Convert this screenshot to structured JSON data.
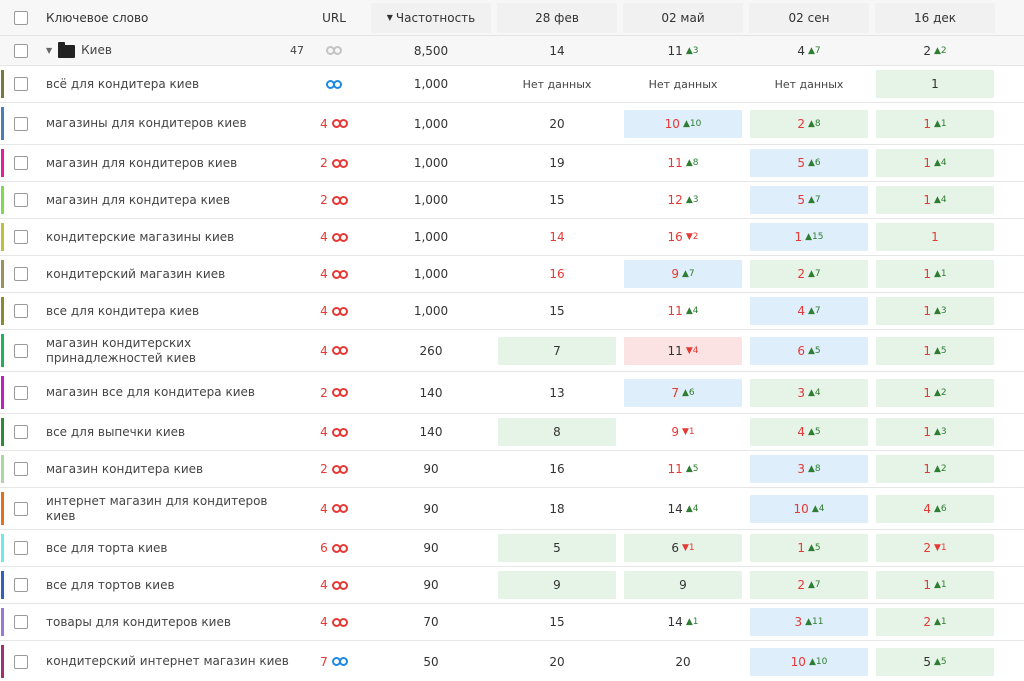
{
  "header": {
    "keyword": "Ключевое слово",
    "url": "URL",
    "frequency": "Частотность",
    "sort_icon": "sort-down-icon",
    "dates": [
      "28 фев",
      "02 май",
      "02 сен",
      "16 дек"
    ]
  },
  "folder": {
    "name": "Киев",
    "count": "47",
    "frequency": "8,500",
    "positions": [
      {
        "v": "14",
        "d": ""
      },
      {
        "v": "11",
        "d": "▲3"
      },
      {
        "v": "4",
        "d": "▲7"
      },
      {
        "v": "2",
        "d": "▲2"
      }
    ]
  },
  "colors": {
    "up": "#2e7d32",
    "down": "#e53935",
    "green_bg": "#e6f4e8",
    "blue_bg": "#dfeefb",
    "pink_bg": "#fbe3e3",
    "link_red": "#e53935",
    "link_blue": "#1e88e5"
  },
  "rows": [
    {
      "kw": "всё для кондитера киев",
      "bar": "#7a7a3a",
      "url": "",
      "url_color": "blue",
      "freq": "1,000",
      "p": [
        {
          "v": "Нет данных",
          "d": "",
          "bg": "",
          "c": "",
          "nd": true
        },
        {
          "v": "Нет данных",
          "d": "",
          "bg": "",
          "c": "",
          "nd": true
        },
        {
          "v": "Нет данных",
          "d": "",
          "bg": "",
          "c": "",
          "nd": true
        },
        {
          "v": "1",
          "d": "",
          "bg": "green",
          "c": ""
        }
      ]
    },
    {
      "kw": "магазины для кондитеров киев",
      "bar": "#4a7fb5",
      "url": "4",
      "url_color": "red",
      "freq": "1,000",
      "tall": true,
      "p": [
        {
          "v": "20",
          "d": "",
          "bg": "",
          "c": ""
        },
        {
          "v": "10",
          "d": "▲10",
          "bg": "blue",
          "c": "red"
        },
        {
          "v": "2",
          "d": "▲8",
          "bg": "green",
          "c": "red"
        },
        {
          "v": "1",
          "d": "▲1",
          "bg": "green",
          "c": "red"
        }
      ]
    },
    {
      "kw": "магазин для кондитеров киев",
      "bar": "#e020a0",
      "url": "2",
      "url_color": "red",
      "freq": "1,000",
      "p": [
        {
          "v": "19",
          "d": "",
          "bg": "",
          "c": ""
        },
        {
          "v": "11",
          "d": "▲8",
          "bg": "",
          "c": "red"
        },
        {
          "v": "5",
          "d": "▲6",
          "bg": "blue",
          "c": "red"
        },
        {
          "v": "1",
          "d": "▲4",
          "bg": "green",
          "c": "red"
        }
      ]
    },
    {
      "kw": "магазин для кондитера киев",
      "bar": "#7ed957",
      "url": "2",
      "url_color": "red",
      "freq": "1,000",
      "p": [
        {
          "v": "15",
          "d": "",
          "bg": "",
          "c": ""
        },
        {
          "v": "12",
          "d": "▲3",
          "bg": "",
          "c": "red"
        },
        {
          "v": "5",
          "d": "▲7",
          "bg": "blue",
          "c": "red"
        },
        {
          "v": "1",
          "d": "▲4",
          "bg": "green",
          "c": "red"
        }
      ]
    },
    {
      "kw": "кондитерские магазины киев",
      "bar": "#c0c040",
      "url": "4",
      "url_color": "red",
      "freq": "1,000",
      "p": [
        {
          "v": "14",
          "d": "",
          "bg": "",
          "c": "red"
        },
        {
          "v": "16",
          "d": "▼2",
          "bg": "",
          "c": "red"
        },
        {
          "v": "1",
          "d": "▲15",
          "bg": "blue",
          "c": "red"
        },
        {
          "v": "1",
          "d": "",
          "bg": "green",
          "c": "red"
        }
      ]
    },
    {
      "kw": "кондитерский магазин киев",
      "bar": "#a09060",
      "url": "4",
      "url_color": "red",
      "freq": "1,000",
      "p": [
        {
          "v": "16",
          "d": "",
          "bg": "",
          "c": "red"
        },
        {
          "v": "9",
          "d": "▲7",
          "bg": "blue",
          "c": "red"
        },
        {
          "v": "2",
          "d": "▲7",
          "bg": "green",
          "c": "red"
        },
        {
          "v": "1",
          "d": "▲1",
          "bg": "green",
          "c": "red"
        }
      ]
    },
    {
      "kw": "все для кондитера киев",
      "bar": "#8a8a30",
      "url": "4",
      "url_color": "red",
      "freq": "1,000",
      "p": [
        {
          "v": "15",
          "d": "",
          "bg": "",
          "c": ""
        },
        {
          "v": "11",
          "d": "▲4",
          "bg": "",
          "c": "red"
        },
        {
          "v": "4",
          "d": "▲7",
          "bg": "blue",
          "c": "red"
        },
        {
          "v": "1",
          "d": "▲3",
          "bg": "green",
          "c": "red"
        }
      ]
    },
    {
      "kw": "магазин кондитерских принадлежностей киев",
      "bar": "#20b060",
      "url": "4",
      "url_color": "red",
      "freq": "260",
      "tall": true,
      "p": [
        {
          "v": "7",
          "d": "",
          "bg": "green",
          "c": ""
        },
        {
          "v": "11",
          "d": "▼4",
          "bg": "pink",
          "c": ""
        },
        {
          "v": "6",
          "d": "▲5",
          "bg": "blue",
          "c": "red"
        },
        {
          "v": "1",
          "d": "▲5",
          "bg": "green",
          "c": "red"
        }
      ]
    },
    {
      "kw": "магазин все для кондитера киев",
      "bar": "#c020c0",
      "url": "2",
      "url_color": "red",
      "freq": "140",
      "tall": true,
      "p": [
        {
          "v": "13",
          "d": "",
          "bg": "",
          "c": ""
        },
        {
          "v": "7",
          "d": "▲6",
          "bg": "blue",
          "c": "red"
        },
        {
          "v": "3",
          "d": "▲4",
          "bg": "green",
          "c": "red"
        },
        {
          "v": "1",
          "d": "▲2",
          "bg": "green",
          "c": "red"
        }
      ]
    },
    {
      "kw": "все для выпечки киев",
      "bar": "#2e8b3a",
      "url": "4",
      "url_color": "red",
      "freq": "140",
      "p": [
        {
          "v": "8",
          "d": "",
          "bg": "green",
          "c": ""
        },
        {
          "v": "9",
          "d": "▼1",
          "bg": "",
          "c": "red"
        },
        {
          "v": "4",
          "d": "▲5",
          "bg": "green",
          "c": "red"
        },
        {
          "v": "1",
          "d": "▲3",
          "bg": "green",
          "c": "red"
        }
      ]
    },
    {
      "kw": "магазин кондитера киев",
      "bar": "#a8d8a0",
      "url": "2",
      "url_color": "red",
      "freq": "90",
      "p": [
        {
          "v": "16",
          "d": "",
          "bg": "",
          "c": ""
        },
        {
          "v": "11",
          "d": "▲5",
          "bg": "",
          "c": "red"
        },
        {
          "v": "3",
          "d": "▲8",
          "bg": "blue",
          "c": "red"
        },
        {
          "v": "1",
          "d": "▲2",
          "bg": "green",
          "c": "red"
        }
      ]
    },
    {
      "kw": "интернет магазин для кондитеров киев",
      "bar": "#e07020",
      "url": "4",
      "url_color": "red",
      "freq": "90",
      "tall": true,
      "p": [
        {
          "v": "18",
          "d": "",
          "bg": "",
          "c": ""
        },
        {
          "v": "14",
          "d": "▲4",
          "bg": "",
          "c": ""
        },
        {
          "v": "10",
          "d": "▲4",
          "bg": "blue",
          "c": "red"
        },
        {
          "v": "4",
          "d": "▲6",
          "bg": "green",
          "c": "red"
        }
      ]
    },
    {
      "kw": "все для торта киев",
      "bar": "#70e8e8",
      "url": "6",
      "url_color": "red",
      "freq": "90",
      "p": [
        {
          "v": "5",
          "d": "",
          "bg": "green",
          "c": ""
        },
        {
          "v": "6",
          "d": "▼1",
          "bg": "green",
          "c": ""
        },
        {
          "v": "1",
          "d": "▲5",
          "bg": "green",
          "c": "red"
        },
        {
          "v": "2",
          "d": "▼1",
          "bg": "green",
          "c": "red"
        }
      ]
    },
    {
      "kw": "все для тортов киев",
      "bar": "#3060c0",
      "url": "4",
      "url_color": "red",
      "freq": "90",
      "p": [
        {
          "v": "9",
          "d": "",
          "bg": "green",
          "c": ""
        },
        {
          "v": "9",
          "d": "",
          "bg": "green",
          "c": ""
        },
        {
          "v": "2",
          "d": "▲7",
          "bg": "green",
          "c": "red"
        },
        {
          "v": "1",
          "d": "▲1",
          "bg": "green",
          "c": "red"
        }
      ]
    },
    {
      "kw": "товары для кондитеров киев",
      "bar": "#9a7ad0",
      "url": "4",
      "url_color": "red",
      "freq": "70",
      "p": [
        {
          "v": "15",
          "d": "",
          "bg": "",
          "c": ""
        },
        {
          "v": "14",
          "d": "▲1",
          "bg": "",
          "c": ""
        },
        {
          "v": "3",
          "d": "▲11",
          "bg": "blue",
          "c": "red"
        },
        {
          "v": "2",
          "d": "▲1",
          "bg": "green",
          "c": "red"
        }
      ]
    },
    {
      "kw": "кондитерский интернет магазин киев",
      "bar": "#a03070",
      "url": "7",
      "url_color": "blue",
      "freq": "50",
      "tall": true,
      "p": [
        {
          "v": "20",
          "d": "",
          "bg": "",
          "c": ""
        },
        {
          "v": "20",
          "d": "",
          "bg": "",
          "c": ""
        },
        {
          "v": "10",
          "d": "▲10",
          "bg": "blue",
          "c": "red"
        },
        {
          "v": "5",
          "d": "▲5",
          "bg": "green",
          "c": ""
        }
      ]
    }
  ]
}
